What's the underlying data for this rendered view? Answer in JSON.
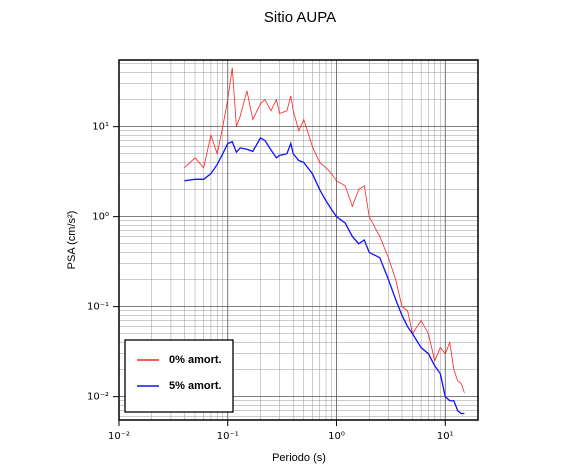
{
  "chart_data": {
    "type": "line",
    "title": "Sitio AUPA",
    "x_label": "Periodo (s)",
    "y_label": "PSA (cm/s²)",
    "x_log": true,
    "y_log": true,
    "grid": true,
    "minor_grid": true,
    "legend": "lower left",
    "xlim": [
      0.01,
      20
    ],
    "ylim": [
      0.0055,
      55
    ],
    "xticks": [
      {
        "value": 0.01,
        "label": "10⁻²"
      },
      {
        "value": 0.1,
        "label": "10⁻¹"
      },
      {
        "value": 1,
        "label": "10⁰"
      },
      {
        "value": 10,
        "label": "10¹"
      }
    ],
    "yticks": [
      {
        "value": 0.01,
        "label": "10⁻²"
      },
      {
        "value": 0.1,
        "label": "10⁻¹"
      },
      {
        "value": 1,
        "label": "10⁰"
      },
      {
        "value": 10,
        "label": "10¹"
      }
    ],
    "x": [
      0.04,
      0.05,
      0.06,
      0.07,
      0.08,
      0.09,
      0.1,
      0.11,
      0.12,
      0.13,
      0.15,
      0.17,
      0.2,
      0.22,
      0.25,
      0.28,
      0.3,
      0.35,
      0.38,
      0.4,
      0.45,
      0.5,
      0.6,
      0.7,
      0.8,
      0.9,
      1.0,
      1.2,
      1.4,
      1.6,
      1.8,
      2.0,
      2.5,
      3.0,
      3.5,
      4.0,
      4.5,
      5,
      6,
      7,
      8,
      9,
      10,
      11,
      12,
      13,
      14,
      15
    ],
    "series": [
      {
        "name": "0% amort.",
        "color": "#ff2020",
        "width": 0.8,
        "values": [
          3.5,
          4.5,
          3.5,
          8,
          5,
          10,
          20,
          45,
          10,
          13,
          25,
          12,
          18,
          20,
          15,
          20,
          14,
          15,
          22,
          15,
          9,
          12,
          6,
          4,
          3.5,
          3,
          2.5,
          2.2,
          1.3,
          2,
          2.2,
          1,
          0.6,
          0.35,
          0.2,
          0.1,
          0.09,
          0.05,
          0.07,
          0.05,
          0.025,
          0.035,
          0.03,
          0.04,
          0.02,
          0.015,
          0.014,
          0.011
        ]
      },
      {
        "name": "5% amort.",
        "color": "#1010ff",
        "width": 1.3,
        "values": [
          2.5,
          2.6,
          2.6,
          3.0,
          3.8,
          5.0,
          6.5,
          6.8,
          5.2,
          5.8,
          5.6,
          5.3,
          7.5,
          7.0,
          5.5,
          4.5,
          4.8,
          5.0,
          6.5,
          5.0,
          4.2,
          4.0,
          3.0,
          2.0,
          1.5,
          1.2,
          1.0,
          0.85,
          0.6,
          0.5,
          0.55,
          0.4,
          0.35,
          0.2,
          0.12,
          0.08,
          0.06,
          0.05,
          0.035,
          0.03,
          0.022,
          0.018,
          0.01,
          0.009,
          0.009,
          0.007,
          0.0065,
          0.0065
        ]
      }
    ]
  }
}
